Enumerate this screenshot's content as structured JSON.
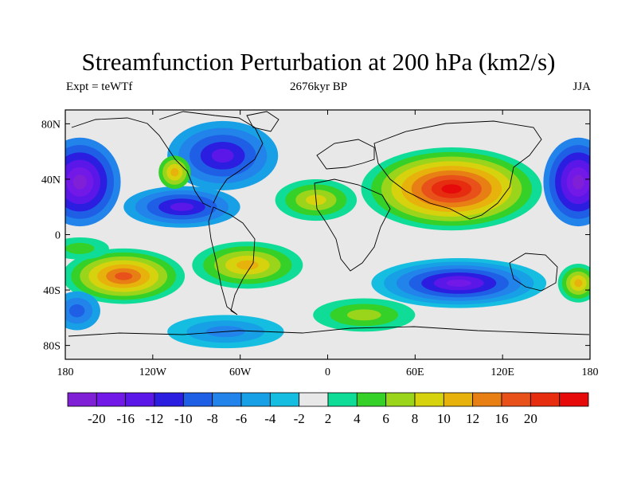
{
  "title": "Streamfunction Perturbation at 200 hPa (km2/s)",
  "left_label": "Expt = teWTf",
  "center_label": "2676kyr BP",
  "right_label": "JJA",
  "lat_ticks": [
    {
      "label": "80N",
      "lat": 80
    },
    {
      "label": "40N",
      "lat": 40
    },
    {
      "label": "0",
      "lat": 0
    },
    {
      "label": "40S",
      "lat": -40
    },
    {
      "label": "80S",
      "lat": -80
    }
  ],
  "lon_ticks": [
    {
      "label": "180",
      "lon": -180
    },
    {
      "label": "120W",
      "lon": -120
    },
    {
      "label": "60W",
      "lon": -60
    },
    {
      "label": "0",
      "lon": 0
    },
    {
      "label": "60E",
      "lon": 60
    },
    {
      "label": "120E",
      "lon": 120
    },
    {
      "label": "180",
      "lon": 180
    }
  ],
  "colorbar": {
    "colors": [
      "#7f1fd6",
      "#7219e8",
      "#5b17e8",
      "#2b1ee0",
      "#1f5fe6",
      "#2283ea",
      "#17a0e6",
      "#15bde0",
      "#e8e8e8",
      "#0fdc96",
      "#35d028",
      "#9ad51b",
      "#d7d20e",
      "#e8b20c",
      "#e87f14",
      "#e8521a",
      "#e62d10",
      "#e60a0a"
    ],
    "labels": [
      "-20",
      "-16",
      "-12",
      "-10",
      "-8",
      "-6",
      "-4",
      "-2",
      "2",
      "4",
      "6",
      "8",
      "10",
      "12",
      "16",
      "20"
    ]
  },
  "map_blobs": [
    {
      "lon": -170,
      "lat": 38,
      "rx": 28,
      "ry": 32,
      "levels": [
        5,
        4,
        3,
        2,
        1,
        0
      ]
    },
    {
      "lon": 172,
      "lat": 38,
      "rx": 24,
      "ry": 32,
      "levels": [
        5,
        4,
        3,
        2,
        1,
        0
      ]
    },
    {
      "lon": -72,
      "lat": 57,
      "rx": 38,
      "ry": 25,
      "levels": [
        6,
        5,
        4,
        3,
        2
      ]
    },
    {
      "lon": -100,
      "lat": 20,
      "rx": 40,
      "ry": 15,
      "levels": [
        6,
        5,
        4,
        3,
        2
      ]
    },
    {
      "lon": -105,
      "lat": 45,
      "rx": 11,
      "ry": 12,
      "levels": [
        10,
        11,
        12,
        13
      ]
    },
    {
      "lon": 85,
      "lat": 33,
      "rx": 62,
      "ry": 30,
      "levels": [
        9,
        10,
        11,
        12,
        13,
        14,
        15,
        16,
        17
      ]
    },
    {
      "lon": -8,
      "lat": 25,
      "rx": 28,
      "ry": 15,
      "levels": [
        9,
        10,
        11,
        12
      ]
    },
    {
      "lon": -140,
      "lat": -30,
      "rx": 42,
      "ry": 20,
      "levels": [
        9,
        10,
        11,
        12,
        13,
        14,
        15
      ]
    },
    {
      "lon": -55,
      "lat": -22,
      "rx": 38,
      "ry": 17,
      "levels": [
        9,
        10,
        11,
        12,
        13
      ]
    },
    {
      "lon": 90,
      "lat": -35,
      "rx": 60,
      "ry": 18,
      "levels": [
        7,
        6,
        5,
        4,
        3,
        2,
        1
      ]
    },
    {
      "lon": -172,
      "lat": -55,
      "rx": 16,
      "ry": 14,
      "levels": [
        6,
        5,
        4
      ]
    },
    {
      "lon": -70,
      "lat": -70,
      "rx": 40,
      "ry": 12,
      "levels": [
        7,
        6,
        5
      ]
    },
    {
      "lon": 25,
      "lat": -58,
      "rx": 35,
      "ry": 12,
      "levels": [
        9,
        10,
        11
      ]
    },
    {
      "lon": -170,
      "lat": -10,
      "rx": 20,
      "ry": 8,
      "levels": [
        9,
        10
      ]
    },
    {
      "lon": 172,
      "lat": -35,
      "rx": 14,
      "ry": 14,
      "levels": [
        9,
        10,
        11,
        12,
        13
      ]
    }
  ]
}
